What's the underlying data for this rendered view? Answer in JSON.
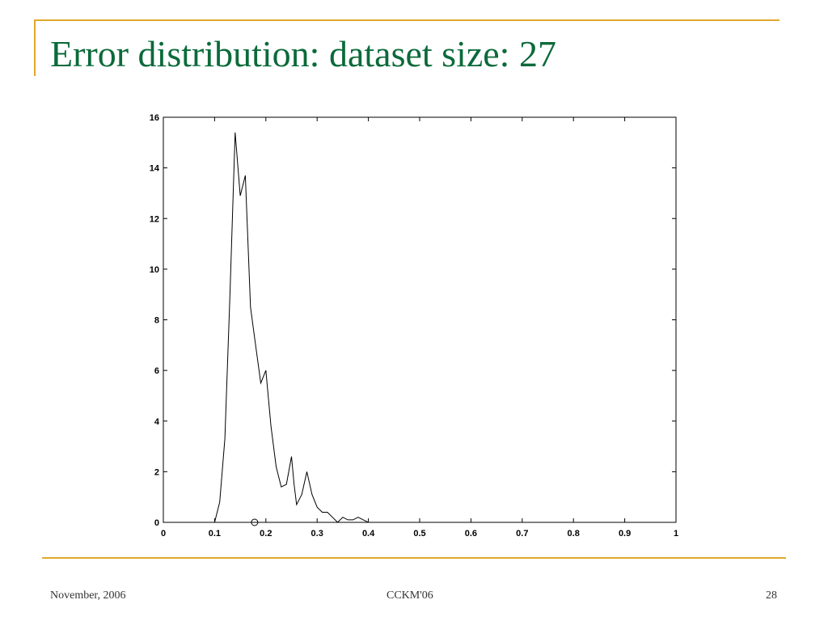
{
  "slide": {
    "title": "Error distribution: dataset size: 27",
    "footer_left": "November, 2006",
    "footer_center": "CCKM'06",
    "footer_right": "28",
    "accent_color": "#e0a92a",
    "title_color": "#0b6a3a"
  },
  "chart_data": {
    "type": "line",
    "title": "",
    "xlabel": "",
    "ylabel": "",
    "xlim": [
      0,
      1
    ],
    "ylim": [
      0,
      16
    ],
    "xticks": [
      0,
      0.1,
      0.2,
      0.3,
      0.4,
      0.5,
      0.6,
      0.7,
      0.8,
      0.9,
      1
    ],
    "xtick_labels": [
      "0",
      "0.1",
      "0.2",
      "0.3",
      "0.4",
      "0.5",
      "0.6",
      "0.7",
      "0.8",
      "0.9",
      "1"
    ],
    "yticks": [
      0,
      2,
      4,
      6,
      8,
      10,
      12,
      14,
      16
    ],
    "ytick_labels": [
      "0",
      "2",
      "4",
      "6",
      "8",
      "10",
      "12",
      "14",
      "16"
    ],
    "grid": false,
    "series": [
      {
        "x": [
          0,
          0.1,
          0.11,
          0.12,
          0.13,
          0.14,
          0.15,
          0.16,
          0.17,
          0.18,
          0.19,
          0.2,
          0.21,
          0.22,
          0.23,
          0.24,
          0.25,
          0.255,
          0.26,
          0.265,
          0.27,
          0.28,
          0.29,
          0.3,
          0.31,
          0.32,
          0.33,
          0.34,
          0.35,
          0.36,
          0.37,
          0.38,
          0.39,
          0.4,
          1
        ],
        "y": [
          0,
          0,
          0.8,
          3.3,
          9.0,
          15.4,
          12.9,
          13.7,
          8.5,
          7.0,
          5.5,
          6.0,
          3.8,
          2.2,
          1.4,
          1.5,
          2.6,
          1.5,
          0.7,
          0.9,
          1.1,
          2.0,
          1.1,
          0.6,
          0.4,
          0.4,
          0.2,
          0.0,
          0.2,
          0.1,
          0.1,
          0.2,
          0.1,
          0.0,
          0
        ]
      }
    ],
    "marker_point": {
      "x": 0.178,
      "y": 0
    }
  }
}
